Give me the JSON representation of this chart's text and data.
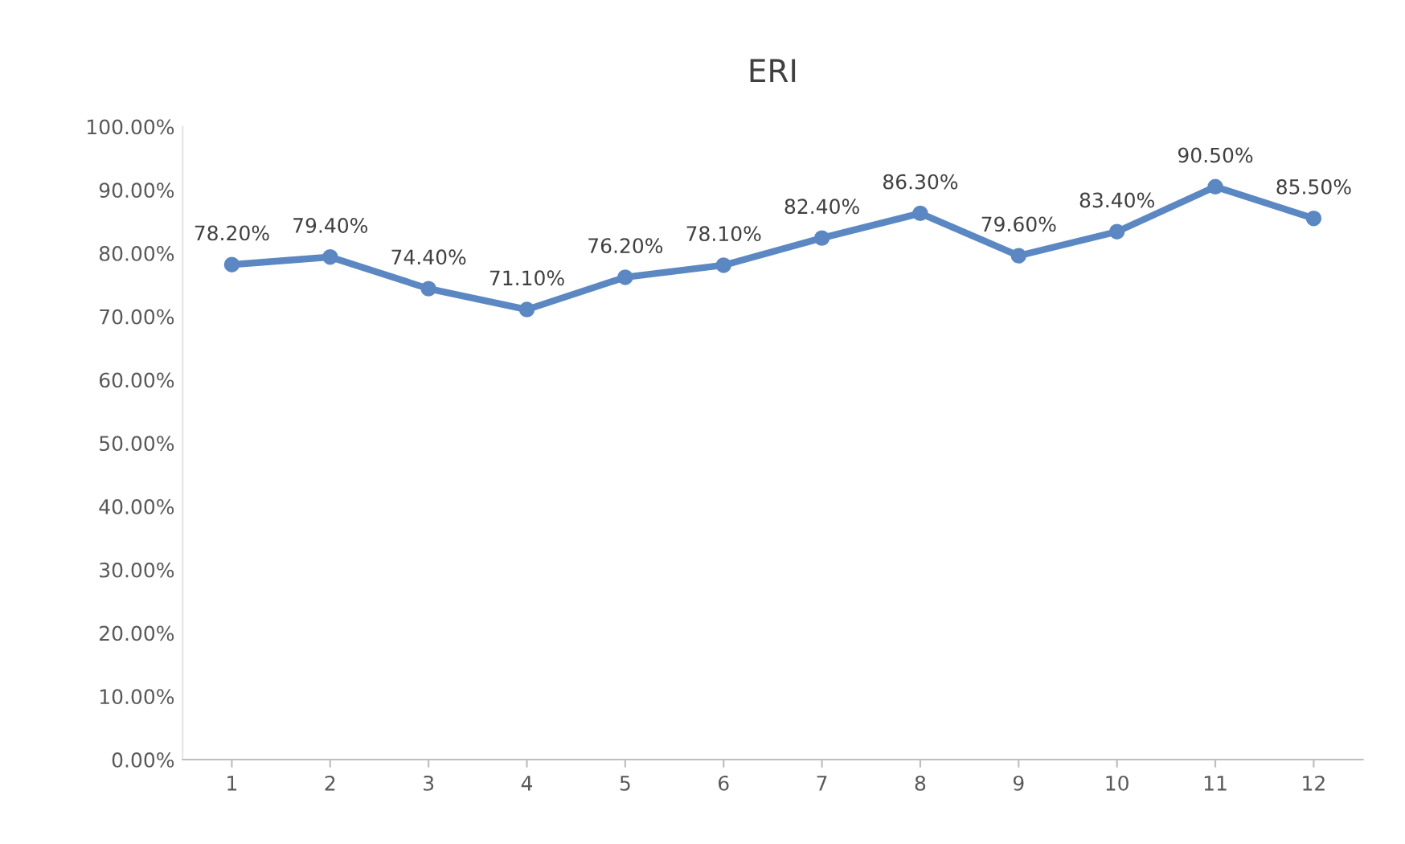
{
  "chart_data": {
    "type": "line",
    "title": "ERI",
    "categories": [
      "1",
      "2",
      "3",
      "4",
      "5",
      "6",
      "7",
      "8",
      "9",
      "10",
      "11",
      "12"
    ],
    "series": [
      {
        "color": "#5b87c2",
        "values": [
          78.2,
          79.4,
          74.4,
          71.1,
          76.2,
          78.1,
          82.4,
          86.3,
          79.6,
          83.4,
          90.5,
          85.5
        ],
        "value_labels": [
          "78.20%",
          "79.40%",
          "74.40%",
          "71.10%",
          "76.20%",
          "78.10%",
          "82.40%",
          "86.30%",
          "79.60%",
          "83.40%",
          "90.50%",
          "85.50%"
        ]
      }
    ],
    "ylim": [
      0,
      100
    ],
    "yticks": [
      {
        "value": 0,
        "label": "0.00%"
      },
      {
        "value": 10,
        "label": "10.00%"
      },
      {
        "value": 20,
        "label": "20.00%"
      },
      {
        "value": 30,
        "label": "30.00%"
      },
      {
        "value": 40,
        "label": "40.00%"
      },
      {
        "value": 50,
        "label": "50.00%"
      },
      {
        "value": 60,
        "label": "60.00%"
      },
      {
        "value": 70,
        "label": "70.00%"
      },
      {
        "value": 80,
        "label": "80.00%"
      },
      {
        "value": 90,
        "label": "90.00%"
      },
      {
        "value": 100,
        "label": "100.00%"
      }
    ],
    "marker": "circle",
    "line_style": "solid",
    "grid": false
  }
}
